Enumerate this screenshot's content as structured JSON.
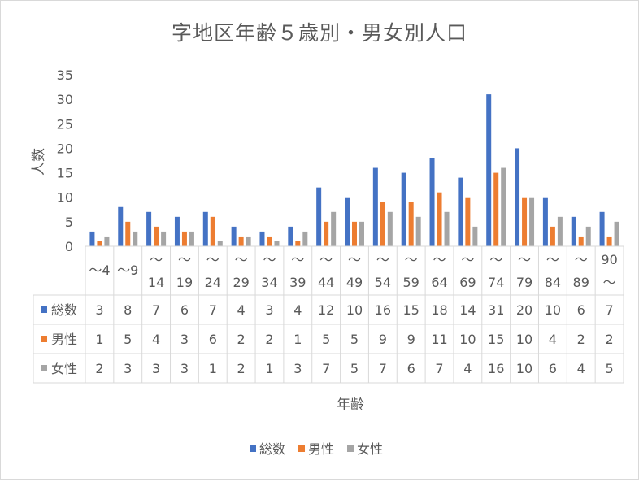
{
  "chart_data": {
    "type": "bar",
    "title": "字地区年齢５歳別・男女別人口",
    "xlabel": "年齢",
    "ylabel": "人数",
    "ylim": [
      0,
      35
    ],
    "yticks": [
      0,
      5,
      10,
      15,
      20,
      25,
      30,
      35
    ],
    "grid": false,
    "legend_position": "bottom",
    "data_table": true,
    "categories": [
      [
        "～4"
      ],
      [
        "～9"
      ],
      [
        "～",
        "14"
      ],
      [
        "～",
        "19"
      ],
      [
        "～",
        "24"
      ],
      [
        "～",
        "29"
      ],
      [
        "～",
        "34"
      ],
      [
        "～",
        "39"
      ],
      [
        "～",
        "44"
      ],
      [
        "～",
        "49"
      ],
      [
        "～",
        "54"
      ],
      [
        "～",
        "59"
      ],
      [
        "～",
        "64"
      ],
      [
        "～",
        "69"
      ],
      [
        "～",
        "74"
      ],
      [
        "～",
        "79"
      ],
      [
        "～",
        "84"
      ],
      [
        "～",
        "89"
      ],
      [
        "90",
        "～"
      ]
    ],
    "series": [
      {
        "name": "総数",
        "color": "#4472c4",
        "values": [
          3,
          8,
          7,
          6,
          7,
          4,
          3,
          4,
          12,
          10,
          16,
          15,
          18,
          14,
          31,
          20,
          10,
          6,
          7
        ]
      },
      {
        "name": "男性",
        "color": "#ed7d31",
        "values": [
          1,
          5,
          4,
          3,
          6,
          2,
          2,
          1,
          5,
          5,
          9,
          9,
          11,
          10,
          15,
          10,
          4,
          2,
          2
        ]
      },
      {
        "name": "女性",
        "color": "#a5a5a5",
        "values": [
          2,
          3,
          3,
          3,
          1,
          2,
          1,
          3,
          7,
          5,
          7,
          6,
          7,
          4,
          16,
          10,
          6,
          4,
          5
        ]
      }
    ]
  }
}
